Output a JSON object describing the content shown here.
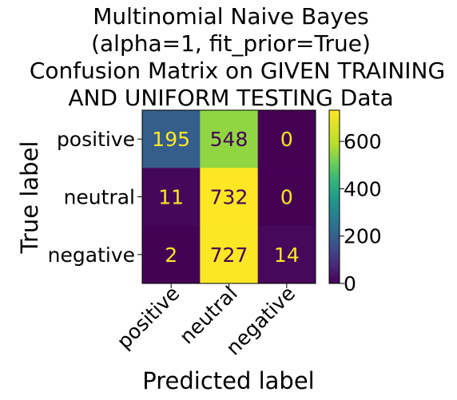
{
  "chart_data": {
    "type": "heatmap",
    "title_lines": [
      "Multinomial Naive Bayes",
      "(alpha=1, fit_prior=True)",
      "Confusion Matrix on GIVEN TRAINING",
      "AND UNIFORM TESTING Data"
    ],
    "xlabel": "Predicted label",
    "ylabel": "True label",
    "row_labels": [
      "positive",
      "neutral",
      "negative"
    ],
    "col_labels": [
      "positive",
      "neutral",
      "negative"
    ],
    "matrix": [
      [
        195,
        548,
        0
      ],
      [
        11,
        732,
        0
      ],
      [
        2,
        727,
        14
      ]
    ],
    "colormap": "viridis",
    "vmin": 0,
    "vmax": 732,
    "colorbar_ticks": [
      0,
      200,
      400,
      600
    ],
    "text_color_dark_cell": "#fde725",
    "text_color_light_cell": "#440154"
  }
}
